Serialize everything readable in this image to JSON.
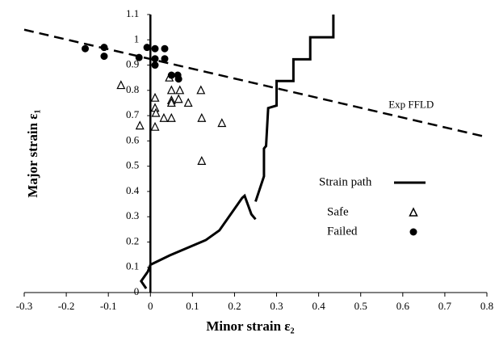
{
  "chart_data": {
    "type": "scatter",
    "x_label": "Minor strain ε₂",
    "y_label": "Major strain ε₁",
    "xlim": [
      -0.3,
      0.8
    ],
    "ylim": [
      0,
      1.1
    ],
    "xticks": [
      -0.3,
      -0.2,
      -0.1,
      0,
      0.1,
      0.2,
      0.3,
      0.4,
      0.5,
      0.6,
      0.7,
      0.8
    ],
    "yticks": [
      0,
      0.1,
      0.2,
      0.3,
      0.4,
      0.5,
      0.6,
      0.7,
      0.8,
      0.9,
      1,
      1.1
    ],
    "reference_line": {
      "label": "Exp FFLD",
      "x": [
        -0.3,
        0.8
      ],
      "values": [
        1.04,
        0.615
      ],
      "color": "#000000",
      "style": "dashed"
    },
    "series": [
      {
        "name": "Strain path",
        "type": "line",
        "color": "#000000",
        "x": [
          -0.01,
          -0.022,
          -0.006,
          0,
          0.046,
          0.132,
          0.164,
          0.218,
          0.224,
          0.24,
          0.25,
          null,
          0.25,
          0.27,
          0.27,
          0.275,
          0.28,
          0.3,
          0.3,
          0.34,
          0.34,
          0.38,
          0.38,
          0.435,
          0.435
        ],
        "values": [
          0.016,
          0.045,
          0.083,
          0.11,
          0.147,
          0.208,
          0.246,
          0.374,
          0.383,
          0.31,
          0.29,
          null,
          0.36,
          0.46,
          0.57,
          0.58,
          0.73,
          0.74,
          0.837,
          0.837,
          0.923,
          0.923,
          1.01,
          1.01,
          1.1
        ]
      },
      {
        "name": "Safe",
        "type": "scatter",
        "marker": "triangle",
        "color": "#000000",
        "x": [
          -0.07,
          -0.025,
          0.011,
          0.011,
          0.013,
          0.011,
          0.032,
          0.045,
          0.05,
          0.05,
          0.05,
          0.05,
          0.07,
          0.09,
          0.12,
          0.122,
          0.17,
          0.122,
          0.067
        ],
        "values": [
          0.82,
          0.66,
          0.77,
          0.73,
          0.71,
          0.655,
          0.69,
          0.85,
          0.69,
          0.8,
          0.76,
          0.75,
          0.8,
          0.75,
          0.8,
          0.69,
          0.67,
          0.52,
          0.765
        ]
      },
      {
        "name": "Failed",
        "type": "scatter",
        "marker": "circle",
        "color": "#000000",
        "x": [
          -0.155,
          -0.11,
          -0.11,
          -0.027,
          -0.008,
          0.011,
          0.011,
          0.011,
          0.034,
          0.034,
          0.05,
          0.065,
          0.067
        ],
        "values": [
          0.965,
          0.97,
          0.935,
          0.93,
          0.97,
          0.965,
          0.925,
          0.9,
          0.965,
          0.925,
          0.86,
          0.86,
          0.845
        ]
      }
    ]
  }
}
